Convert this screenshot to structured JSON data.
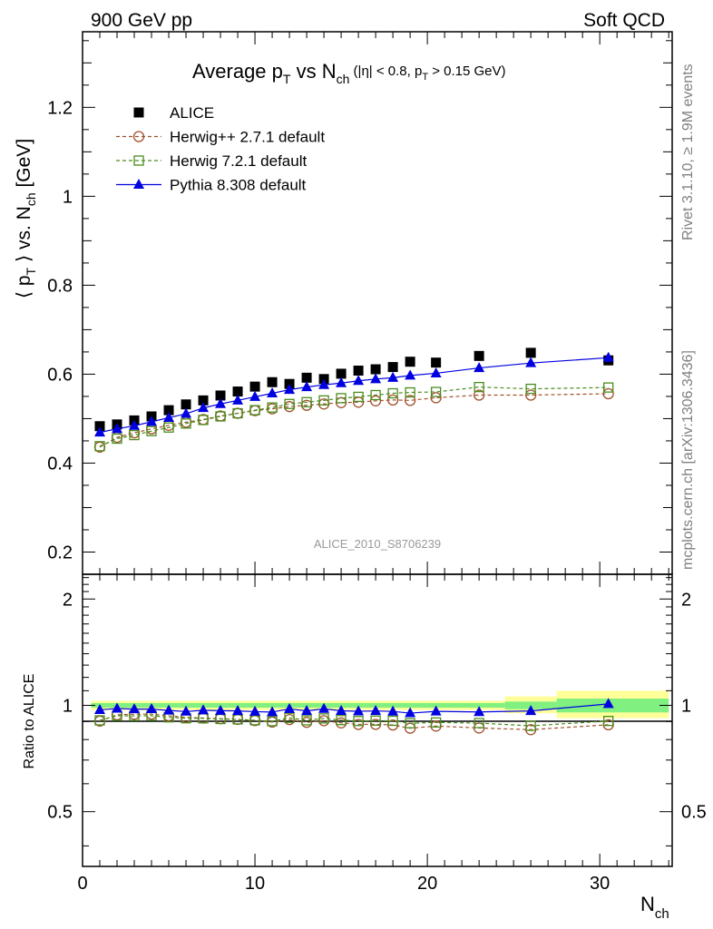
{
  "header": {
    "left": "900 GeV pp",
    "right": "Soft QCD"
  },
  "title": {
    "main": "Average p",
    "sub_T": "T",
    "vs": " vs N",
    "sub_ch": "ch",
    "cuts_a": " (|η| < 0.8, p",
    "cuts_T": "T",
    "cuts_b": " > 0.15 GeV)"
  },
  "side_labels": {
    "rivet": "Rivet 3.1.10, ≥ 1.9M events",
    "mcplots": "mcplots.cern.ch [arXiv:1306.3436]"
  },
  "watermark": "ALICE_2010_S8706239",
  "axes": {
    "ylabel_main": {
      "a": "⟨ p",
      "T": "T",
      "b": " ⟩ vs. N",
      "ch": "ch",
      "c": " [GeV]"
    },
    "ylabel_ratio": "Ratio to ALICE",
    "xlabel": {
      "a": "N",
      "ch": "ch"
    }
  },
  "colors": {
    "alice": "#000000",
    "herwigpp": "#a0522d",
    "herwig7": "#4a8c1c",
    "pythia": "#0000e0",
    "band_inner": "#80f080",
    "band_outer": "#ffff99"
  },
  "chart_data": {
    "type": "scatter",
    "x_range": [
      0,
      34.2
    ],
    "main_panel": {
      "ylim": [
        0.15,
        1.37
      ],
      "yticks": [
        "0.2",
        "0.4",
        "0.6",
        "0.8",
        "1",
        "1.2"
      ]
    },
    "ratio_panel": {
      "ylim": [
        0.35,
        2.35
      ],
      "yticks": [
        "0.5",
        "1",
        "2"
      ],
      "scale": "log"
    },
    "xticks": [
      "0",
      "10",
      "20",
      "30"
    ],
    "legend_position": "top-left",
    "series": [
      {
        "name": "ALICE",
        "marker": "filled-square",
        "x": [
          1,
          2,
          3,
          4,
          5,
          6,
          7,
          8,
          9,
          10,
          11,
          12,
          13,
          14,
          15,
          16,
          17,
          18,
          19,
          20.5,
          23,
          26,
          30.5
        ],
        "y": [
          0.483,
          0.487,
          0.496,
          0.505,
          0.519,
          0.532,
          0.541,
          0.552,
          0.561,
          0.572,
          0.582,
          0.578,
          0.592,
          0.589,
          0.601,
          0.608,
          0.611,
          0.616,
          0.628,
          0.626,
          0.641,
          0.648,
          0.631
        ]
      },
      {
        "name": "Herwig++ 2.7.1 default",
        "marker": "open-circle",
        "line": "dashed",
        "x": [
          1,
          2,
          3,
          4,
          5,
          6,
          7,
          8,
          9,
          10,
          11,
          12,
          13,
          14,
          15,
          16,
          17,
          18,
          19,
          20.5,
          23,
          26,
          30.5
        ],
        "y": [
          0.436,
          0.458,
          0.468,
          0.477,
          0.485,
          0.492,
          0.498,
          0.506,
          0.512,
          0.518,
          0.522,
          0.527,
          0.53,
          0.533,
          0.536,
          0.537,
          0.54,
          0.542,
          0.541,
          0.547,
          0.553,
          0.553,
          0.556
        ]
      },
      {
        "name": "Herwig 7.2.1 default",
        "marker": "open-square",
        "line": "dashed",
        "x": [
          1,
          2,
          3,
          4,
          5,
          6,
          7,
          8,
          9,
          10,
          11,
          12,
          13,
          14,
          15,
          16,
          17,
          18,
          19,
          20.5,
          23,
          26,
          30.5
        ],
        "y": [
          0.438,
          0.455,
          0.463,
          0.472,
          0.48,
          0.489,
          0.497,
          0.505,
          0.512,
          0.519,
          0.525,
          0.533,
          0.537,
          0.541,
          0.546,
          0.549,
          0.553,
          0.557,
          0.559,
          0.56,
          0.571,
          0.567,
          0.57
        ]
      },
      {
        "name": "Pythia 8.308 default",
        "marker": "filled-triangle",
        "line": "solid",
        "x": [
          1,
          2,
          3,
          4,
          5,
          6,
          7,
          8,
          9,
          10,
          11,
          12,
          13,
          14,
          15,
          16,
          17,
          18,
          19,
          20.5,
          23,
          26,
          30.5
        ],
        "y": [
          0.469,
          0.477,
          0.484,
          0.493,
          0.502,
          0.511,
          0.524,
          0.533,
          0.541,
          0.549,
          0.557,
          0.565,
          0.571,
          0.576,
          0.58,
          0.585,
          0.589,
          0.592,
          0.597,
          0.602,
          0.614,
          0.625,
          0.637
        ]
      }
    ],
    "ratio_band": {
      "x_edges": [
        0.5,
        24.5,
        27.5,
        34
      ],
      "inner": [
        [
          0.985,
          1.015
        ],
        [
          0.975,
          1.025
        ],
        [
          0.955,
          1.045
        ]
      ],
      "outer": [
        [
          0.97,
          1.03
        ],
        [
          0.95,
          1.06
        ],
        [
          0.92,
          1.1
        ]
      ]
    }
  }
}
